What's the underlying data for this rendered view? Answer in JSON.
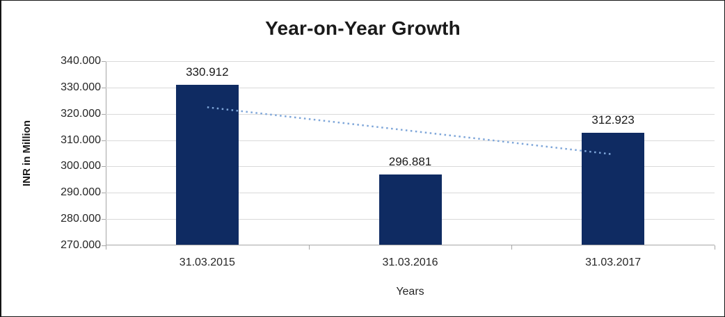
{
  "chart_data": {
    "type": "bar",
    "title": "Year-on-Year Growth",
    "xlabel": "Years",
    "ylabel": "INR in Million",
    "categories": [
      "31.03.2015",
      "31.03.2016",
      "31.03.2017"
    ],
    "values": [
      330.912,
      296.881,
      312.923
    ],
    "data_labels": [
      "330.912",
      "296.881",
      "312.923"
    ],
    "ylim": [
      270,
      340
    ],
    "yticks": [
      {
        "value": 340,
        "label": "340.000"
      },
      {
        "value": 330,
        "label": "330.000"
      },
      {
        "value": 320,
        "label": "320.000"
      },
      {
        "value": 310,
        "label": "310.000"
      },
      {
        "value": 300,
        "label": "300.000"
      },
      {
        "value": 290,
        "label": "290.000"
      },
      {
        "value": 280,
        "label": "280.000"
      },
      {
        "value": 270,
        "label": "270.000"
      }
    ],
    "grid": "horizontal",
    "legend": "none",
    "bar_color": "#0f2b62",
    "trendline": {
      "style": "dotted",
      "color": "#7ea6d9",
      "start_value": 322.5,
      "end_value": 304.6
    }
  }
}
